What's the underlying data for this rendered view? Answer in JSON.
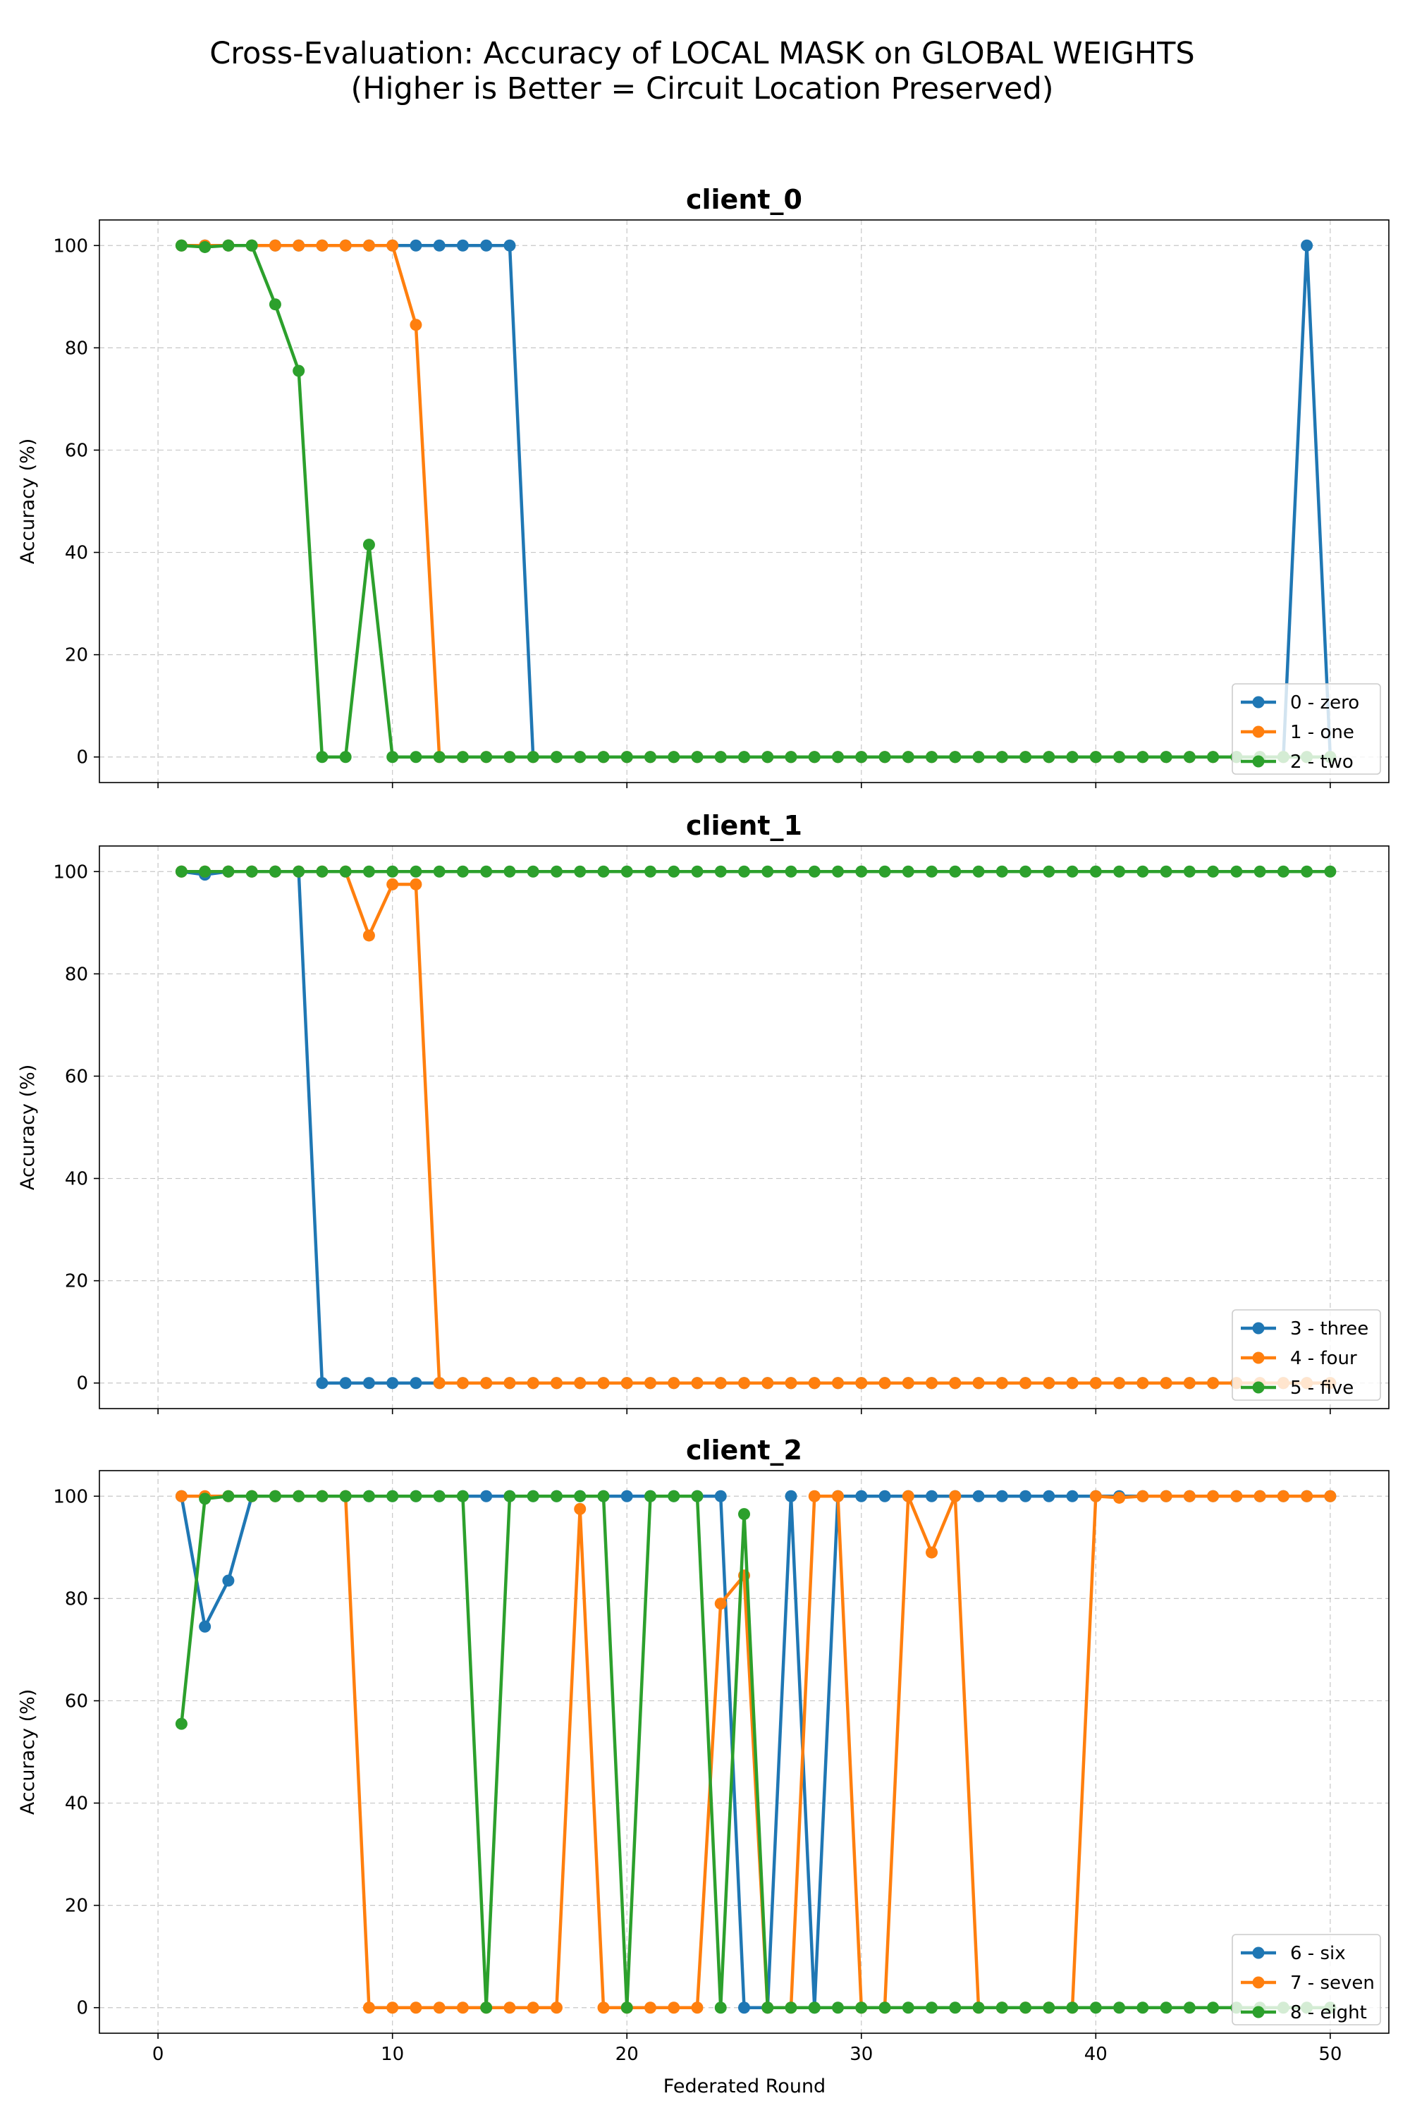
{
  "figure": {
    "title_line1": "Cross-Evaluation: Accuracy of LOCAL MASK on GLOBAL WEIGHTS",
    "title_line2": "(Higher is Better = Circuit Location Preserved)",
    "xlabel": "Federated Round"
  },
  "colors": {
    "blue": "#1f77b4",
    "orange": "#ff7f0e",
    "green": "#2ca02c"
  },
  "chart_data": [
    {
      "type": "line",
      "title": "client_0",
      "ylabel": "Accuracy (%)",
      "xlim": [
        -2.5,
        52.5
      ],
      "ylim": [
        -5,
        105
      ],
      "xticks": [
        0,
        10,
        20,
        30,
        40,
        50
      ],
      "yticks": [
        0,
        20,
        40,
        60,
        80,
        100
      ],
      "grid": true,
      "legend_position": "lower-right",
      "x": [
        1,
        2,
        3,
        4,
        5,
        6,
        7,
        8,
        9,
        10,
        11,
        12,
        13,
        14,
        15,
        16,
        17,
        18,
        19,
        20,
        21,
        22,
        23,
        24,
        25,
        26,
        27,
        28,
        29,
        30,
        31,
        32,
        33,
        34,
        35,
        36,
        37,
        38,
        39,
        40,
        41,
        42,
        43,
        44,
        45,
        46,
        47,
        48,
        49,
        50
      ],
      "series": [
        {
          "name": "0 - zero",
          "color": "#1f77b4",
          "values": [
            100,
            100,
            100,
            100,
            100,
            100,
            100,
            100,
            100,
            100,
            100,
            100,
            100,
            100,
            100,
            0,
            0,
            0,
            0,
            0,
            0,
            0,
            0,
            0,
            0,
            0,
            0,
            0,
            0,
            0,
            0,
            0,
            0,
            0,
            0,
            0,
            0,
            0,
            0,
            0,
            0,
            0,
            0,
            0,
            0,
            0,
            0,
            0,
            100,
            0
          ]
        },
        {
          "name": "1 - one",
          "color": "#ff7f0e",
          "values": [
            100,
            100,
            100,
            100,
            100,
            100,
            100,
            100,
            100,
            100,
            84.5,
            0,
            0,
            0,
            0,
            0,
            0,
            0,
            0,
            0,
            0,
            0,
            0,
            0,
            0,
            0,
            0,
            0,
            0,
            0,
            0,
            0,
            0,
            0,
            0,
            0,
            0,
            0,
            0,
            0,
            0,
            0,
            0,
            0,
            0,
            0,
            0,
            0,
            0,
            0
          ]
        },
        {
          "name": "2 - two",
          "color": "#2ca02c",
          "values": [
            100,
            99.7,
            100,
            100,
            88.5,
            75.5,
            0,
            0,
            41.5,
            0,
            0,
            0,
            0,
            0,
            0,
            0,
            0,
            0,
            0,
            0,
            0,
            0,
            0,
            0,
            0,
            0,
            0,
            0,
            0,
            0,
            0,
            0,
            0,
            0,
            0,
            0,
            0,
            0,
            0,
            0,
            0,
            0,
            0,
            0,
            0,
            0,
            0,
            0,
            0,
            0
          ]
        }
      ]
    },
    {
      "type": "line",
      "title": "client_1",
      "ylabel": "Accuracy (%)",
      "xlim": [
        -2.5,
        52.5
      ],
      "ylim": [
        -5,
        105
      ],
      "xticks": [
        0,
        10,
        20,
        30,
        40,
        50
      ],
      "yticks": [
        0,
        20,
        40,
        60,
        80,
        100
      ],
      "grid": true,
      "legend_position": "lower-right",
      "x": [
        1,
        2,
        3,
        4,
        5,
        6,
        7,
        8,
        9,
        10,
        11,
        12,
        13,
        14,
        15,
        16,
        17,
        18,
        19,
        20,
        21,
        22,
        23,
        24,
        25,
        26,
        27,
        28,
        29,
        30,
        31,
        32,
        33,
        34,
        35,
        36,
        37,
        38,
        39,
        40,
        41,
        42,
        43,
        44,
        45,
        46,
        47,
        48,
        49,
        50
      ],
      "series": [
        {
          "name": "3 - three",
          "color": "#1f77b4",
          "values": [
            100,
            99.4,
            100,
            100,
            100,
            100,
            0,
            0,
            0,
            0,
            0,
            0,
            0,
            0,
            0,
            0,
            0,
            0,
            0,
            0,
            0,
            0,
            0,
            0,
            0,
            0,
            0,
            0,
            0,
            0,
            0,
            0,
            0,
            0,
            0,
            0,
            0,
            0,
            0,
            0,
            0,
            0,
            0,
            0,
            0,
            0,
            0,
            0,
            0,
            0
          ]
        },
        {
          "name": "4 - four",
          "color": "#ff7f0e",
          "values": [
            100,
            100,
            100,
            100,
            100,
            100,
            100,
            100,
            87.5,
            97.5,
            97.5,
            0,
            0,
            0,
            0,
            0,
            0,
            0,
            0,
            0,
            0,
            0,
            0,
            0,
            0,
            0,
            0,
            0,
            0,
            0,
            0,
            0,
            0,
            0,
            0,
            0,
            0,
            0,
            0,
            0,
            0,
            0,
            0,
            0,
            0,
            0,
            0,
            0,
            0,
            0
          ]
        },
        {
          "name": "5 - five",
          "color": "#2ca02c",
          "values": [
            100,
            100,
            100,
            100,
            100,
            100,
            100,
            100,
            100,
            100,
            100,
            100,
            100,
            100,
            100,
            100,
            100,
            100,
            100,
            100,
            100,
            100,
            100,
            100,
            100,
            100,
            100,
            100,
            100,
            100,
            100,
            100,
            100,
            100,
            100,
            100,
            100,
            100,
            100,
            100,
            100,
            100,
            100,
            100,
            100,
            100,
            100,
            100,
            100,
            100
          ]
        }
      ]
    },
    {
      "type": "line",
      "title": "client_2",
      "ylabel": "Accuracy (%)",
      "xlim": [
        -2.5,
        52.5
      ],
      "ylim": [
        -5,
        105
      ],
      "xticks": [
        0,
        10,
        20,
        30,
        40,
        50
      ],
      "yticks": [
        0,
        20,
        40,
        60,
        80,
        100
      ],
      "grid": true,
      "legend_position": "lower-right",
      "x": [
        1,
        2,
        3,
        4,
        5,
        6,
        7,
        8,
        9,
        10,
        11,
        12,
        13,
        14,
        15,
        16,
        17,
        18,
        19,
        20,
        21,
        22,
        23,
        24,
        25,
        26,
        27,
        28,
        29,
        30,
        31,
        32,
        33,
        34,
        35,
        36,
        37,
        38,
        39,
        40,
        41,
        42,
        43,
        44,
        45,
        46,
        47,
        48,
        49,
        50
      ],
      "series": [
        {
          "name": "6 - six",
          "color": "#1f77b4",
          "values": [
            100,
            74.5,
            83.5,
            100,
            100,
            100,
            100,
            100,
            100,
            100,
            100,
            100,
            100,
            100,
            100,
            100,
            100,
            100,
            100,
            100,
            100,
            100,
            100,
            100,
            0,
            0,
            100,
            0,
            100,
            100,
            100,
            100,
            100,
            100,
            100,
            100,
            100,
            100,
            100,
            100,
            100,
            100,
            100,
            100,
            100,
            100,
            100,
            100,
            100,
            100
          ]
        },
        {
          "name": "7 - seven",
          "color": "#ff7f0e",
          "values": [
            100,
            100,
            100,
            100,
            100,
            100,
            100,
            100,
            0,
            0,
            0,
            0,
            0,
            0,
            0,
            0,
            0,
            97.5,
            0,
            0,
            0,
            0,
            0,
            79,
            84.5,
            0,
            0,
            100,
            100,
            0,
            0,
            100,
            89,
            100,
            0,
            0,
            0,
            0,
            0,
            100,
            99.7,
            100,
            100,
            100,
            100,
            100,
            100,
            100,
            100,
            100
          ]
        },
        {
          "name": "8 - eight",
          "color": "#2ca02c",
          "values": [
            55.5,
            99.5,
            100,
            100,
            100,
            100,
            100,
            100,
            100,
            100,
            100,
            100,
            100,
            0,
            100,
            100,
            100,
            100,
            100,
            0,
            100,
            100,
            100,
            0,
            96.5,
            0,
            0,
            0,
            0,
            0,
            0,
            0,
            0,
            0,
            0,
            0,
            0,
            0,
            0,
            0,
            0,
            0,
            0,
            0,
            0,
            0,
            0,
            0,
            0,
            0
          ]
        }
      ]
    }
  ]
}
